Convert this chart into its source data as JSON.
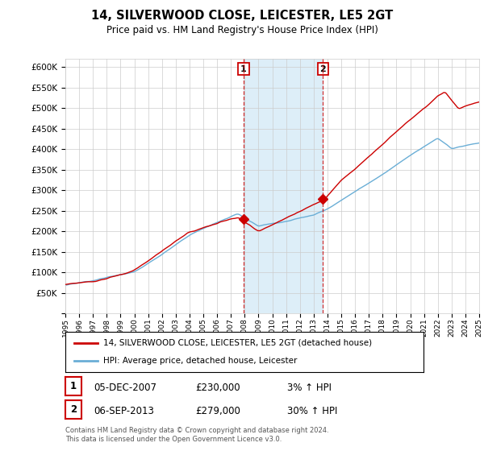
{
  "title": "14, SILVERWOOD CLOSE, LEICESTER, LE5 2GT",
  "subtitle": "Price paid vs. HM Land Registry's House Price Index (HPI)",
  "ylim": [
    0,
    620000
  ],
  "yticks": [
    0,
    50000,
    100000,
    150000,
    200000,
    250000,
    300000,
    350000,
    400000,
    450000,
    500000,
    550000,
    600000
  ],
  "x_start_year": 1995,
  "x_end_year": 2025,
  "transaction1": {
    "date_num": 2007.92,
    "price": 230000,
    "label": "1"
  },
  "transaction2": {
    "date_num": 2013.67,
    "price": 279000,
    "label": "2"
  },
  "line_color_red": "#cc0000",
  "line_color_blue": "#6aaed6",
  "highlight_color": "#ddeef8",
  "legend_entries": [
    "14, SILVERWOOD CLOSE, LEICESTER, LE5 2GT (detached house)",
    "HPI: Average price, detached house, Leicester"
  ],
  "table_rows": [
    {
      "num": "1",
      "date": "05-DEC-2007",
      "price": "£230,000",
      "hpi": "3% ↑ HPI"
    },
    {
      "num": "2",
      "date": "06-SEP-2013",
      "price": "£279,000",
      "hpi": "30% ↑ HPI"
    }
  ],
  "footnote": "Contains HM Land Registry data © Crown copyright and database right 2024.\nThis data is licensed under the Open Government Licence v3.0.",
  "background_color": "#ffffff"
}
